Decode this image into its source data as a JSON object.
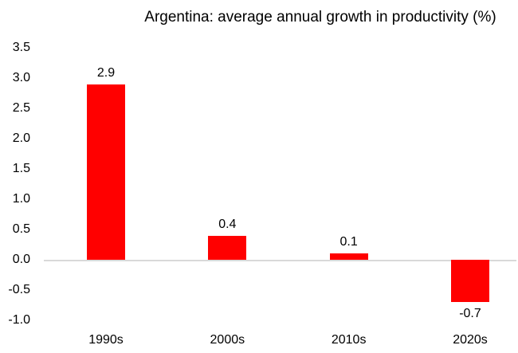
{
  "chart_data": {
    "type": "bar",
    "title": "Argentina: average annual growth in productivity (%)",
    "categories": [
      "1990s",
      "2000s",
      "2010s",
      "2020s"
    ],
    "values": [
      2.9,
      0.4,
      0.1,
      -0.7
    ],
    "data_labels": [
      "2.9",
      "0.4",
      "0.1",
      "-0.7"
    ],
    "xlabel": "",
    "ylabel": "",
    "y_axis": {
      "min": -1.0,
      "max": 3.5,
      "step": 0.5,
      "tick_labels": [
        "3.5",
        "3.0",
        "2.5",
        "2.0",
        "1.5",
        "1.0",
        "0.5",
        "0.0",
        "-0.5",
        "-1.0"
      ]
    },
    "grid": "off",
    "legend": "none",
    "colors": {
      "bar": "#FF0000",
      "axis_line": "#D9D9D9",
      "text": "#000000",
      "background": "#FFFFFF"
    }
  }
}
